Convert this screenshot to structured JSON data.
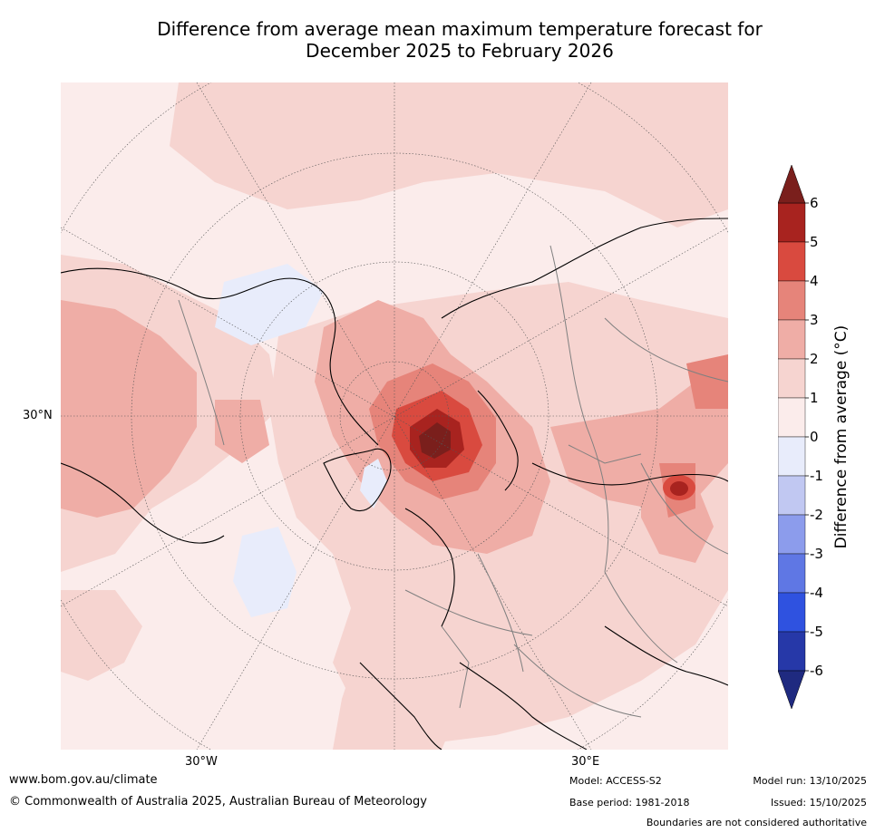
{
  "title_line1": "Difference from average mean maximum temperature forecast for",
  "title_line2": "December 2025 to February 2026",
  "map": {
    "lat_label": "30°N",
    "lon_labels": [
      "30°W",
      "30°E"
    ],
    "colors": {
      "background": "#fbeceb",
      "land_outline": "#000000",
      "borders": "#808080",
      "graticule": "#555555"
    }
  },
  "colorbar": {
    "label": "Difference from average (°C)",
    "ticks": [
      "6",
      "5",
      "4",
      "3",
      "2",
      "1",
      "0",
      "-1",
      "-2",
      "-3",
      "-4",
      "-5",
      "-6"
    ],
    "levels": [
      {
        "range": "5 to 6",
        "color": "#a8231f"
      },
      {
        "range": "4 to 5",
        "color": "#d94a3f"
      },
      {
        "range": "3 to 4",
        "color": "#e6847a"
      },
      {
        "range": "2 to 3",
        "color": "#efada6"
      },
      {
        "range": "1 to 2",
        "color": "#f6d4d0"
      },
      {
        "range": "0 to 1",
        "color": "#fbeceb"
      },
      {
        "range": "-1 to 0",
        "color": "#e8ecfb"
      },
      {
        "range": "-2 to -1",
        "color": "#c1c8f2"
      },
      {
        "range": "-3 to -2",
        "color": "#8c9cec"
      },
      {
        "range": "-4 to -3",
        "color": "#5f77e4"
      },
      {
        "range": "-5 to -4",
        "color": "#2f52e0"
      },
      {
        "range": "-6 to -5",
        "color": "#2638a8"
      }
    ],
    "over_color": "#7a1f1c",
    "under_color": "#1f2a80"
  },
  "footer": {
    "website": "www.bom.gov.au/climate",
    "copyright": "© Commonwealth of Australia 2025, Australian Bureau of Meteorology",
    "model": "Model: ACCESS-S2",
    "base_period": "Base period: 1981-2018",
    "model_run": "Model run: 13/10/2025",
    "issued": "Issued: 15/10/2025",
    "disclaimer": "Boundaries are not considered authoritative"
  }
}
